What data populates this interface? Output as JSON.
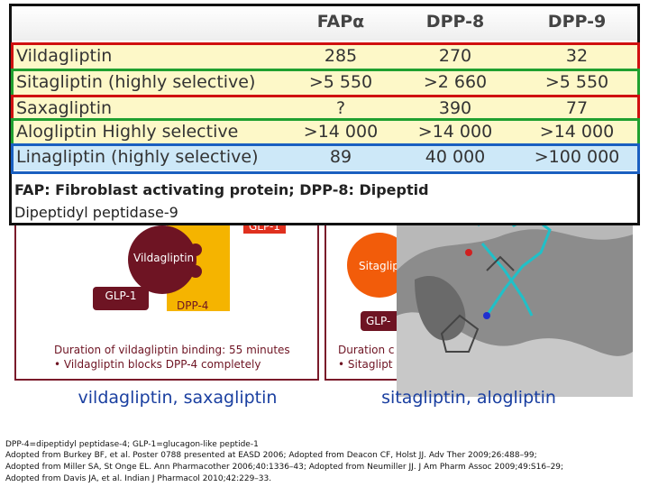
{
  "table": {
    "header": [
      "FAPα",
      "DPP-8",
      "DPP-9"
    ],
    "rows": [
      [
        "Vildagliptin",
        "285",
        "270",
        "32"
      ],
      [
        "Sitagliptin (highly selective)",
        ">5 550",
        ">2 660",
        ">5 550"
      ],
      [
        "Saxagliptin",
        "?",
        "390",
        "77"
      ],
      [
        "Alogliptin Highly selective",
        ">14 000",
        ">14 000",
        ">14 000"
      ],
      [
        "Linagliptin (highly selective)",
        "89",
        "40 000",
        ">100 000"
      ]
    ],
    "footnote": [
      "FAP: Fibroblast activating protein; DPP-8: Dipeptid",
      "Dipeptidyl peptidase-9"
    ]
  },
  "left_panel": {
    "glp_top": "GLP-1",
    "drug": "Vildagliptin",
    "glp": "GLP-1",
    "enzyme": "DPP-4",
    "duration": "Duration of vildagliptin binding: 55 minutes",
    "bullet": "• Vildagliptin blocks DPP-4 completely",
    "caption": "vildagliptin, saxagliptin"
  },
  "right_panel": {
    "drug": "Sitaglip",
    "glp": "GLP-",
    "duration": "Duration c",
    "bullet": "• Sitaglipt",
    "caption": "sitagliptin, alogliptin"
  },
  "references": [
    "DPP-4=dipeptidyl peptidase-4; GLP-1=glucagon-like peptide-1",
    "Adopted from Burkey BF, et al. Poster 0788 presented at EASD 2006; Adopted from Deacon CF, Holst JJ. Adv Ther 2009;26:488–99;",
    "Adopted from Miller SA, St Onge EL. Ann Pharmacother 2006;40:1336–43; Adopted from Neumiller JJ. J Am Pharm Assoc 2009;49:S16–29;",
    "Adopted from Davis JA, et al. Indian J Pharmacol 2010;42:229–33."
  ]
}
